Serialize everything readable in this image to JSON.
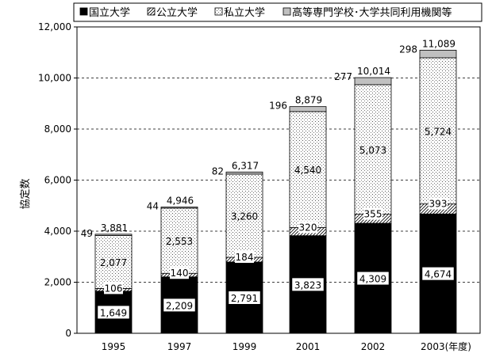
{
  "chart_data": {
    "type": "bar",
    "stacked": true,
    "categories": [
      "1995",
      "1997",
      "1999",
      "2001",
      "2002",
      "2003(年度)"
    ],
    "series": [
      {
        "name": "国立大学",
        "values": [
          1649,
          2209,
          2791,
          3823,
          4309,
          4674
        ],
        "color": "#000000",
        "pattern": "solid"
      },
      {
        "name": "公立大学",
        "values": [
          106,
          140,
          184,
          320,
          355,
          393
        ],
        "color": "#ffffff",
        "pattern": "hatch"
      },
      {
        "name": "私立大学",
        "values": [
          2077,
          2553,
          3260,
          4540,
          5073,
          5724
        ],
        "color": "#ffffff",
        "pattern": "dots"
      },
      {
        "name": "高等専門学校･大学共同利用機関等",
        "values": [
          49,
          44,
          82,
          196,
          277,
          298
        ],
        "color": "#c0c0c0",
        "pattern": "solid"
      }
    ],
    "totals": [
      3881,
      4946,
      6317,
      8879,
      10014,
      11089
    ],
    "total_labels": [
      "3,881",
      "4,946",
      "6,317",
      "8,879",
      "10,014",
      "11,089"
    ],
    "value_labels": [
      [
        "1,649",
        "2,209",
        "2,791",
        "3,823",
        "4,309",
        "4,674"
      ],
      [
        "106",
        "140",
        "184",
        "320",
        "355",
        "393"
      ],
      [
        "2,077",
        "2,553",
        "3,260",
        "4,540",
        "5,073",
        "5,724"
      ],
      [
        "49",
        "44",
        "82",
        "196",
        "277",
        "298"
      ]
    ],
    "ylabel": "協定数",
    "xlabel": "",
    "title": "",
    "ylim": [
      0,
      12000
    ],
    "yticks": [
      0,
      2000,
      4000,
      6000,
      8000,
      10000,
      12000
    ],
    "ytick_labels": [
      "0",
      "2,000",
      "4,000",
      "6,000",
      "8,000",
      "10,000",
      "12,000"
    ],
    "grid": true,
    "legend_position": "top"
  }
}
